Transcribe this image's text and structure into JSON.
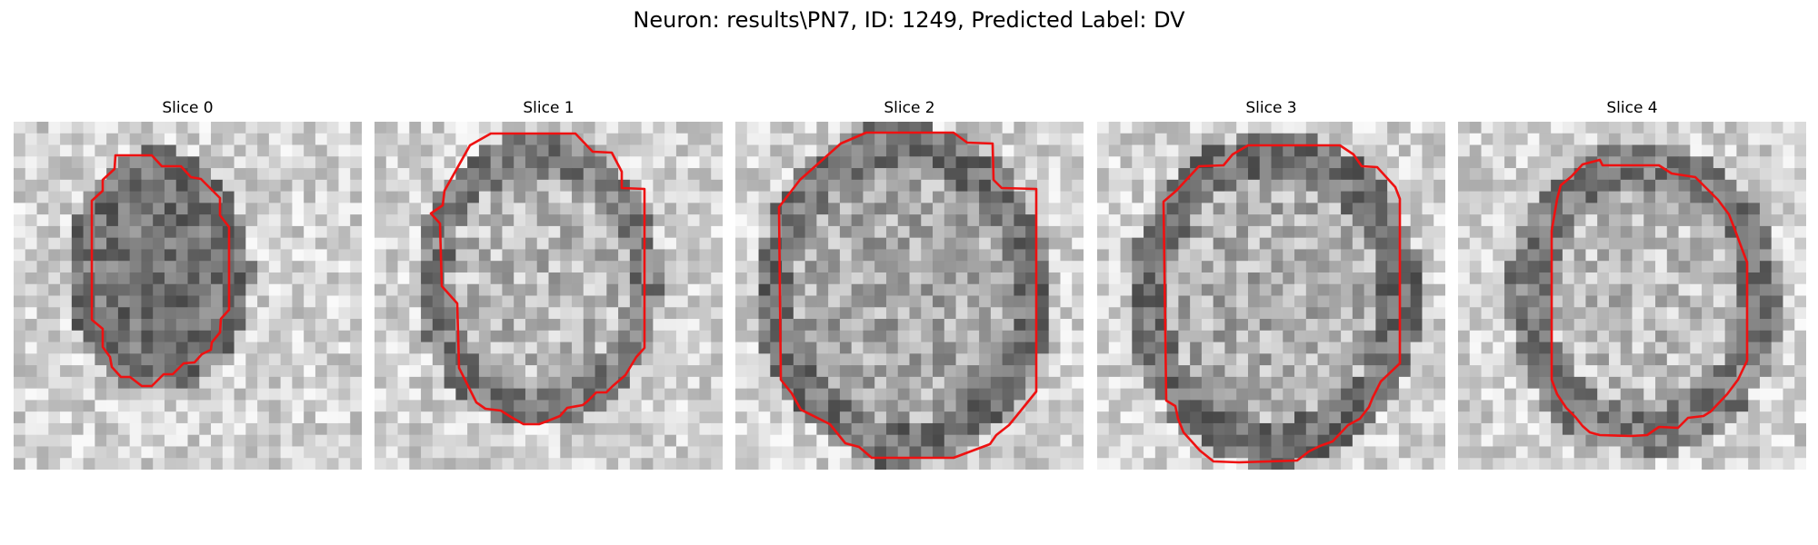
{
  "figure": {
    "title": "Neuron: results\\PN7, ID: 1249, Predicted Label: DV",
    "contour_color": "#ee1111"
  },
  "panels": [
    {
      "title": "Slice 0"
    },
    {
      "title": "Slice 1"
    },
    {
      "title": "Slice 2"
    },
    {
      "title": "Slice 3"
    },
    {
      "title": "Slice 4"
    }
  ]
}
